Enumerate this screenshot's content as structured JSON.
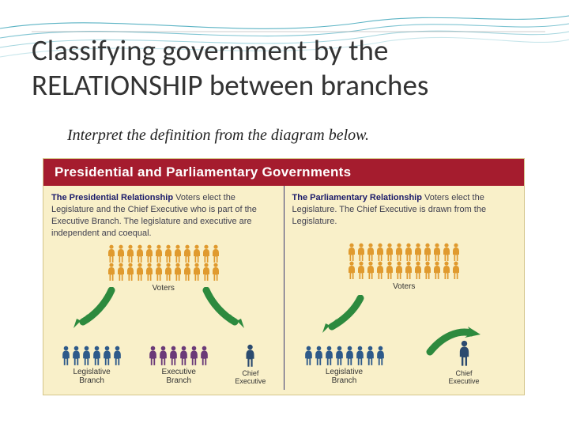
{
  "slide": {
    "title": "Classifying government by the RELATIONSHIP between branches",
    "subtitle": "Interpret the definition from the diagram below."
  },
  "wave": {
    "stroke_colors": [
      "#5bb3c4",
      "#7fc4d2",
      "#a3d5de",
      "#c8e6eb"
    ],
    "stroke_width": 1.1
  },
  "diagram": {
    "background": "#f9f0c9",
    "border": "#d4c58a",
    "banner_bg": "#a51c2e",
    "banner_text_color": "#ffffff",
    "banner_text": "Presidential and Parliamentary Governments",
    "divider_color": "#3a3a70",
    "label_color": "#333333",
    "panel_text_color": "#404050",
    "panel_heading_color": "#1a1a6a",
    "colors": {
      "voter": "#e09a2e",
      "legislative": "#2e5a8a",
      "executive": "#6b3a78",
      "chief": "#2b4a6f",
      "arrow": "#2d8a3e"
    },
    "left_panel": {
      "heading": "The Presidential Relationship",
      "body": " Voters elect the Legislature and the Chief Executive who is part of the Executive Branch. The legislature and executive are independent and coequal.",
      "voters_label": "Voters",
      "legislative_label": "Legislative\nBranch",
      "executive_label": "Executive\nBranch",
      "chief_label": "Chief\nExecutive",
      "voter_rows": [
        12,
        12
      ],
      "legislative_count": 6,
      "executive_count": 6
    },
    "right_panel": {
      "heading": "The Parliamentary Relationship",
      "body": " Voters elect the Legislature. The Chief Executive is drawn from the Legislature.",
      "voters_label": "Voters",
      "legislative_label": "Legislative\nBranch",
      "chief_label": "Chief\nExecutive",
      "voter_rows": [
        12,
        12
      ],
      "legislative_count": 8
    }
  }
}
